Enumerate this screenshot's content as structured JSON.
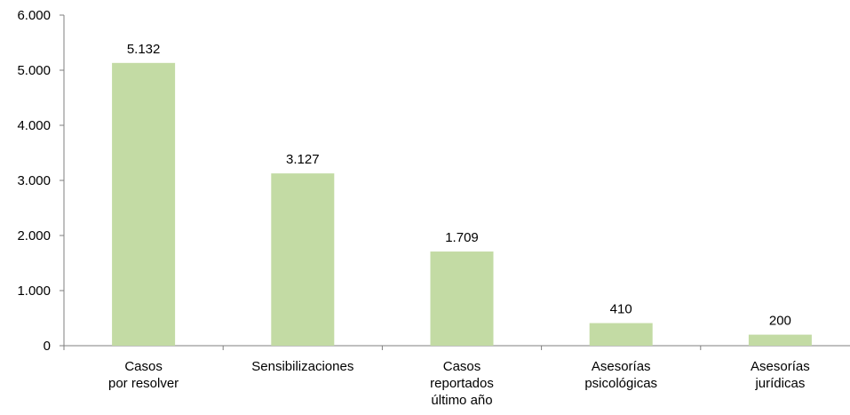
{
  "chart_data": {
    "type": "bar",
    "title": "",
    "xlabel": "",
    "ylabel": "",
    "categories": [
      [
        "Casos",
        "por resolver"
      ],
      [
        "Sensibilizaciones"
      ],
      [
        "Casos",
        "reportados",
        "último año"
      ],
      [
        "Asesorías",
        "psicológicas"
      ],
      [
        "Asesorías",
        "jurídicas"
      ]
    ],
    "values": [
      5132,
      3127,
      1709,
      410,
      200
    ],
    "value_labels": [
      "5.132",
      "3.127",
      "1.709",
      "410",
      "200"
    ],
    "ylim": [
      0,
      6000
    ],
    "yticks": [
      0,
      1000,
      2000,
      3000,
      4000,
      5000,
      6000
    ],
    "ytick_labels": [
      "0",
      "1.000",
      "2.000",
      "3.000",
      "4.000",
      "5.000",
      "6.000"
    ],
    "grid": false,
    "legend": "none",
    "colors": {
      "bar": "#c3dba4",
      "axis": "#7f7f7f",
      "text": "#000000"
    }
  }
}
